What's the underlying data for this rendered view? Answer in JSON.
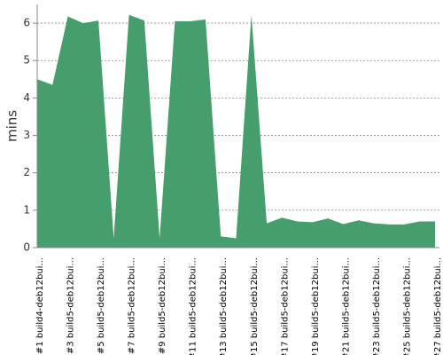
{
  "chart_data": {
    "type": "area",
    "y_label": "mins",
    "categories": [
      "#1 build4-deb12bui...",
      null,
      "#3 build5-deb12bui...",
      null,
      "#5 build5-deb12bui...",
      null,
      "#7 build5-deb12bui...",
      null,
      "#9 build5-deb12bui...",
      null,
      "#11 build5-deb12bui...",
      null,
      "#13 build5-deb12bui...",
      null,
      "#15 build5-deb12bui...",
      null,
      "#17 build5-deb12bui...",
      null,
      "#19 build5-deb12bui...",
      null,
      "#21 build5-deb12bui...",
      null,
      "#23 build5-deb12bui...",
      null,
      "#25 build5-deb12bui...",
      null,
      "#27 build5-deb12bui..."
    ],
    "values": [
      4.5,
      4.35,
      6.18,
      6.0,
      6.07,
      0.25,
      6.22,
      6.07,
      0.25,
      6.05,
      6.05,
      6.1,
      0.3,
      0.25,
      6.22,
      0.65,
      0.8,
      0.7,
      0.68,
      0.78,
      0.63,
      0.73,
      0.65,
      0.62,
      0.62,
      0.7,
      0.7
    ],
    "color": "#459e6c",
    "ylim": [
      0,
      6.5
    ],
    "yticks": [
      0,
      1,
      2,
      3,
      4,
      5,
      6
    ],
    "grid": true
  }
}
